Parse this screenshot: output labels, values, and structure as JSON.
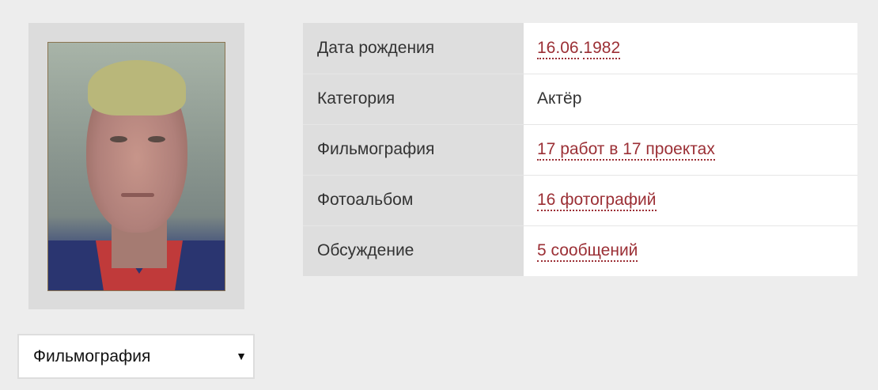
{
  "photo": {
    "alt": "actor photo"
  },
  "info": {
    "rows": [
      {
        "label": "Дата рождения",
        "value_parts": [
          "16.06",
          "1982"
        ],
        "sep": "."
      },
      {
        "label": "Категория",
        "value": "Актёр"
      },
      {
        "label": "Фильмография",
        "value": "17 работ в 17 проектах"
      },
      {
        "label": "Фотоальбом",
        "value": "16 фотографий"
      },
      {
        "label": "Обсуждение",
        "value": "5 сообщений"
      }
    ]
  },
  "select": {
    "value": "Фильмография",
    "arrow": "▼"
  },
  "colors": {
    "link": "#9b2f35",
    "background": "#ededed"
  }
}
